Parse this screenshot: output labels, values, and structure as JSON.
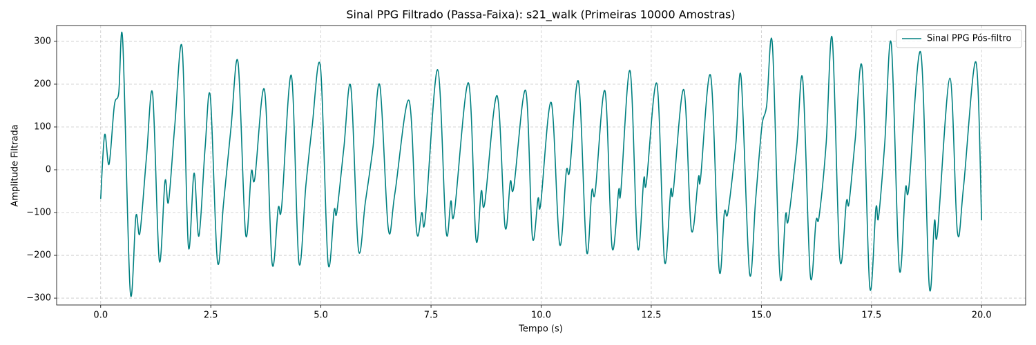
{
  "chart_data": {
    "type": "line",
    "title": "Sinal PPG Filtrado (Passa-Faixa): s21_walk (Primeiras 10000 Amostras)",
    "x_label": "Tempo (s)",
    "y_label": "Amplitude Filtrada",
    "xlim": [
      -1.0,
      21.0
    ],
    "ylim": [
      -316,
      337
    ],
    "xticks": [
      {
        "value": 0,
        "label": "0.0"
      },
      {
        "value": 2.5,
        "label": "2.5"
      },
      {
        "value": 5,
        "label": "5.0"
      },
      {
        "value": 7.5,
        "label": "7.5"
      },
      {
        "value": 10,
        "label": "10.0"
      },
      {
        "value": 12.5,
        "label": "12.5"
      },
      {
        "value": 15,
        "label": "15.0"
      },
      {
        "value": 17.5,
        "label": "17.5"
      },
      {
        "value": 20,
        "label": "20.0"
      }
    ],
    "yticks": [
      {
        "value": -300,
        "label": "−300"
      },
      {
        "value": -200,
        "label": "−200"
      },
      {
        "value": -100,
        "label": "−100"
      },
      0,
      100,
      200,
      300
    ],
    "grid": true,
    "legend": "upper right",
    "x": [
      0,
      0.09,
      0.19,
      0.31,
      0.41,
      0.5,
      0.67,
      0.8,
      0.89,
      1.04,
      1.18,
      1.33,
      1.46,
      1.54,
      1.68,
      1.85,
      1.99,
      2.12,
      2.23,
      2.37,
      2.49,
      2.65,
      2.79,
      2.96,
      3.12,
      3.29,
      3.42,
      3.5,
      3.72,
      3.89,
      4.03,
      4.11,
      4.33,
      4.5,
      4.66,
      4.8,
      4.99,
      5.16,
      5.3,
      5.36,
      5.52,
      5.68,
      5.85,
      6.01,
      6.18,
      6.34,
      6.53,
      6.68,
      7.0,
      7.17,
      7.29,
      7.37,
      7.65,
      7.84,
      7.95,
      8.03,
      8.35,
      8.52,
      8.64,
      8.72,
      9.0,
      9.18,
      9.3,
      9.38,
      9.65,
      9.8,
      9.93,
      9.99,
      10.23,
      10.42,
      10.57,
      10.65,
      10.85,
      11.03,
      11.15,
      11.23,
      11.45,
      11.61,
      11.76,
      11.81,
      12.02,
      12.19,
      12.33,
      12.39,
      12.63,
      12.8,
      12.94,
      13.0,
      13.24,
      13.41,
      13.57,
      13.62,
      13.85,
      14.04,
      14.16,
      14.24,
      14.42,
      14.54,
      14.73,
      14.87,
      15.01,
      15.12,
      15.25,
      15.42,
      15.55,
      15.61,
      15.8,
      15.94,
      16.11,
      16.24,
      16.31,
      16.47,
      16.61,
      16.78,
      16.93,
      16.99,
      17.13,
      17.29,
      17.46,
      17.6,
      17.66,
      17.8,
      17.95,
      18.13,
      18.27,
      18.35,
      18.62,
      18.81,
      18.93,
      19.0,
      19.28,
      19.45,
      19.59,
      19.87,
      20.0
    ],
    "series": [
      {
        "name": "Sinal PPG Pós-filtro",
        "color": "#008080",
        "values": [
          -68,
          82,
          13,
          150,
          180,
          302,
          -283,
          -108,
          -148,
          30,
          177,
          -212,
          -27,
          -75,
          100,
          285,
          -178,
          -8,
          -155,
          50,
          170,
          -213,
          -78,
          100,
          250,
          -150,
          -5,
          -20,
          186,
          -217,
          -90,
          -85,
          220,
          -216,
          -35,
          100,
          240,
          -215,
          -95,
          -100,
          50,
          193,
          -185,
          -75,
          50,
          196,
          -138,
          -55,
          162,
          -142,
          -100,
          -113,
          234,
          -142,
          -73,
          -100,
          203,
          -162,
          -50,
          -78,
          173,
          -133,
          -28,
          -40,
          185,
          -156,
          -67,
          -80,
          157,
          -174,
          -5,
          0,
          205,
          -189,
          -50,
          -50,
          184,
          -181,
          -48,
          -50,
          231,
          -181,
          -22,
          -30,
          200,
          -213,
          -50,
          -50,
          187,
          -140,
          -18,
          -20,
          219,
          -232,
          -100,
          -100,
          60,
          216,
          -240,
          -70,
          100,
          150,
          293,
          -245,
          -105,
          -118,
          50,
          210,
          -246,
          -120,
          -110,
          60,
          306,
          -206,
          -75,
          -78,
          70,
          236,
          -273,
          -90,
          -112,
          60,
          294,
          -230,
          -45,
          -40,
          273,
          -270,
          -120,
          -146,
          214,
          -145,
          -40,
          252,
          -118
        ]
      }
    ]
  }
}
